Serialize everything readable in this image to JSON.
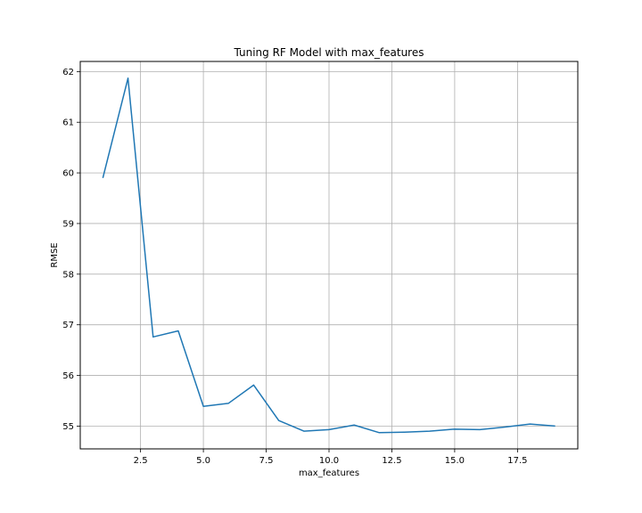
{
  "chart_data": {
    "type": "line",
    "title": "Tuning RF Model with max_features",
    "xlabel": "max_features",
    "ylabel": "RMSE",
    "xlim": [
      0.1,
      19.9
    ],
    "ylim": [
      54.55,
      62.2
    ],
    "xticks": [
      2.5,
      5.0,
      7.5,
      10.0,
      12.5,
      15.0,
      17.5
    ],
    "xtick_labels": [
      "2.5",
      "5.0",
      "7.5",
      "10.0",
      "12.5",
      "15.0",
      "17.5"
    ],
    "yticks": [
      55,
      56,
      57,
      58,
      59,
      60,
      61,
      62
    ],
    "ytick_labels": [
      "55",
      "56",
      "57",
      "58",
      "59",
      "60",
      "61",
      "62"
    ],
    "grid": true,
    "line_color": "#1f77b4",
    "grid_color": "#b0b0b0",
    "series": [
      {
        "x": [
          1,
          2,
          3,
          4,
          5,
          6,
          7,
          8,
          9,
          10,
          11,
          12,
          13,
          14,
          15,
          16,
          17,
          18,
          19
        ],
        "y": [
          59.9,
          61.87,
          56.76,
          56.88,
          55.39,
          55.45,
          55.81,
          55.11,
          54.9,
          54.93,
          55.02,
          54.87,
          54.88,
          54.9,
          54.94,
          54.93,
          54.98,
          55.04,
          55.0
        ]
      }
    ]
  }
}
